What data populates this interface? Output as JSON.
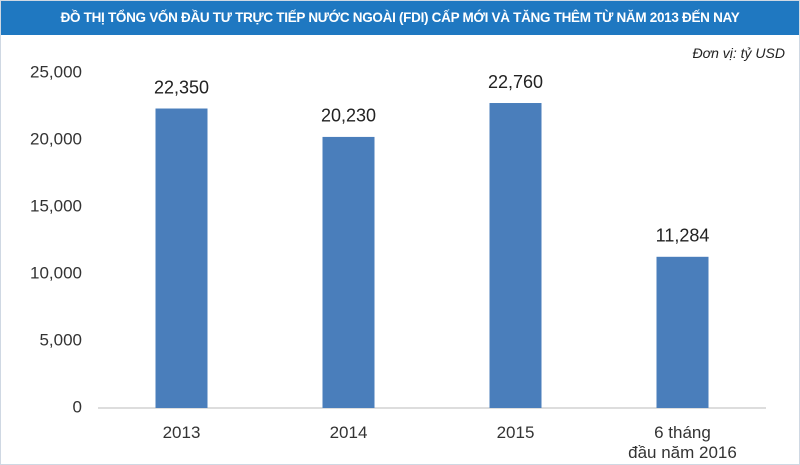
{
  "chart_data": {
    "type": "bar",
    "title": "ĐỒ THỊ TỔNG VỐN ĐẦU TƯ TRỰC TIẾP NƯỚC NGOÀI (FDI) CẤP MỚI VÀ TĂNG THÊM TỪ NĂM 2013 ĐẾN NAY",
    "subtitle": "Đơn vị: tỷ USD",
    "categories": [
      "2013",
      "2014",
      "2015",
      "6 tháng\nđầu năm 2016"
    ],
    "values": [
      22350,
      20230,
      22760,
      11284
    ],
    "value_labels": [
      "22,350",
      "20,230",
      "22,760",
      "11,284"
    ],
    "color": "#4a7ebb",
    "ylim": [
      0,
      25000
    ],
    "yticks": [
      0,
      {
        "value": 5000,
        "label": "5,000"
      },
      {
        "value": 10000,
        "label": "10,000"
      },
      {
        "value": 15000,
        "label": "15,000"
      },
      {
        "value": 20000,
        "label": "20,000"
      },
      {
        "value": 25000,
        "label": "25,000"
      }
    ],
    "grid": false
  }
}
